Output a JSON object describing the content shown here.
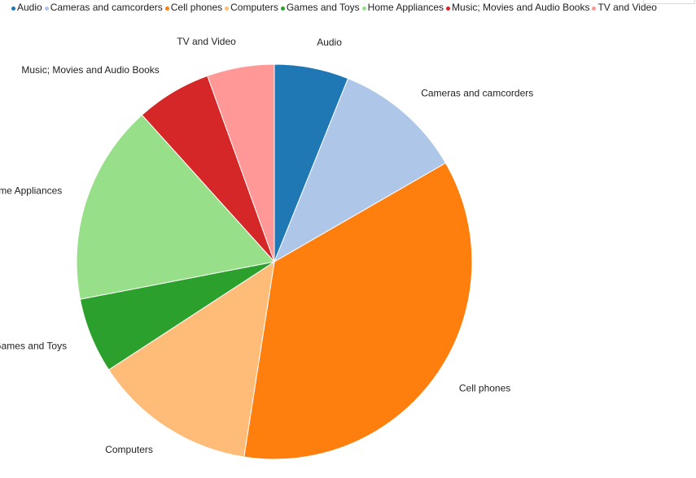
{
  "chart_data": {
    "type": "pie",
    "categories": [
      "Audio",
      "Cameras and camcorders",
      "Cell phones",
      "Computers",
      "Games and Toys",
      "Home Appliances",
      "Music; Movies and Audio Books",
      "TV and Video"
    ],
    "values": [
      6.2,
      10.8,
      36.5,
      13.6,
      6.3,
      16.7,
      6.3,
      5.6
    ],
    "colors": [
      "#1f77b4",
      "#aec7e8",
      "#ff7f0e",
      "#ffbb78",
      "#2ca02c",
      "#98df8a",
      "#d62728",
      "#ff9896"
    ],
    "legend_position": "top-left",
    "title": "",
    "slice_border_color": "#ffffff"
  }
}
